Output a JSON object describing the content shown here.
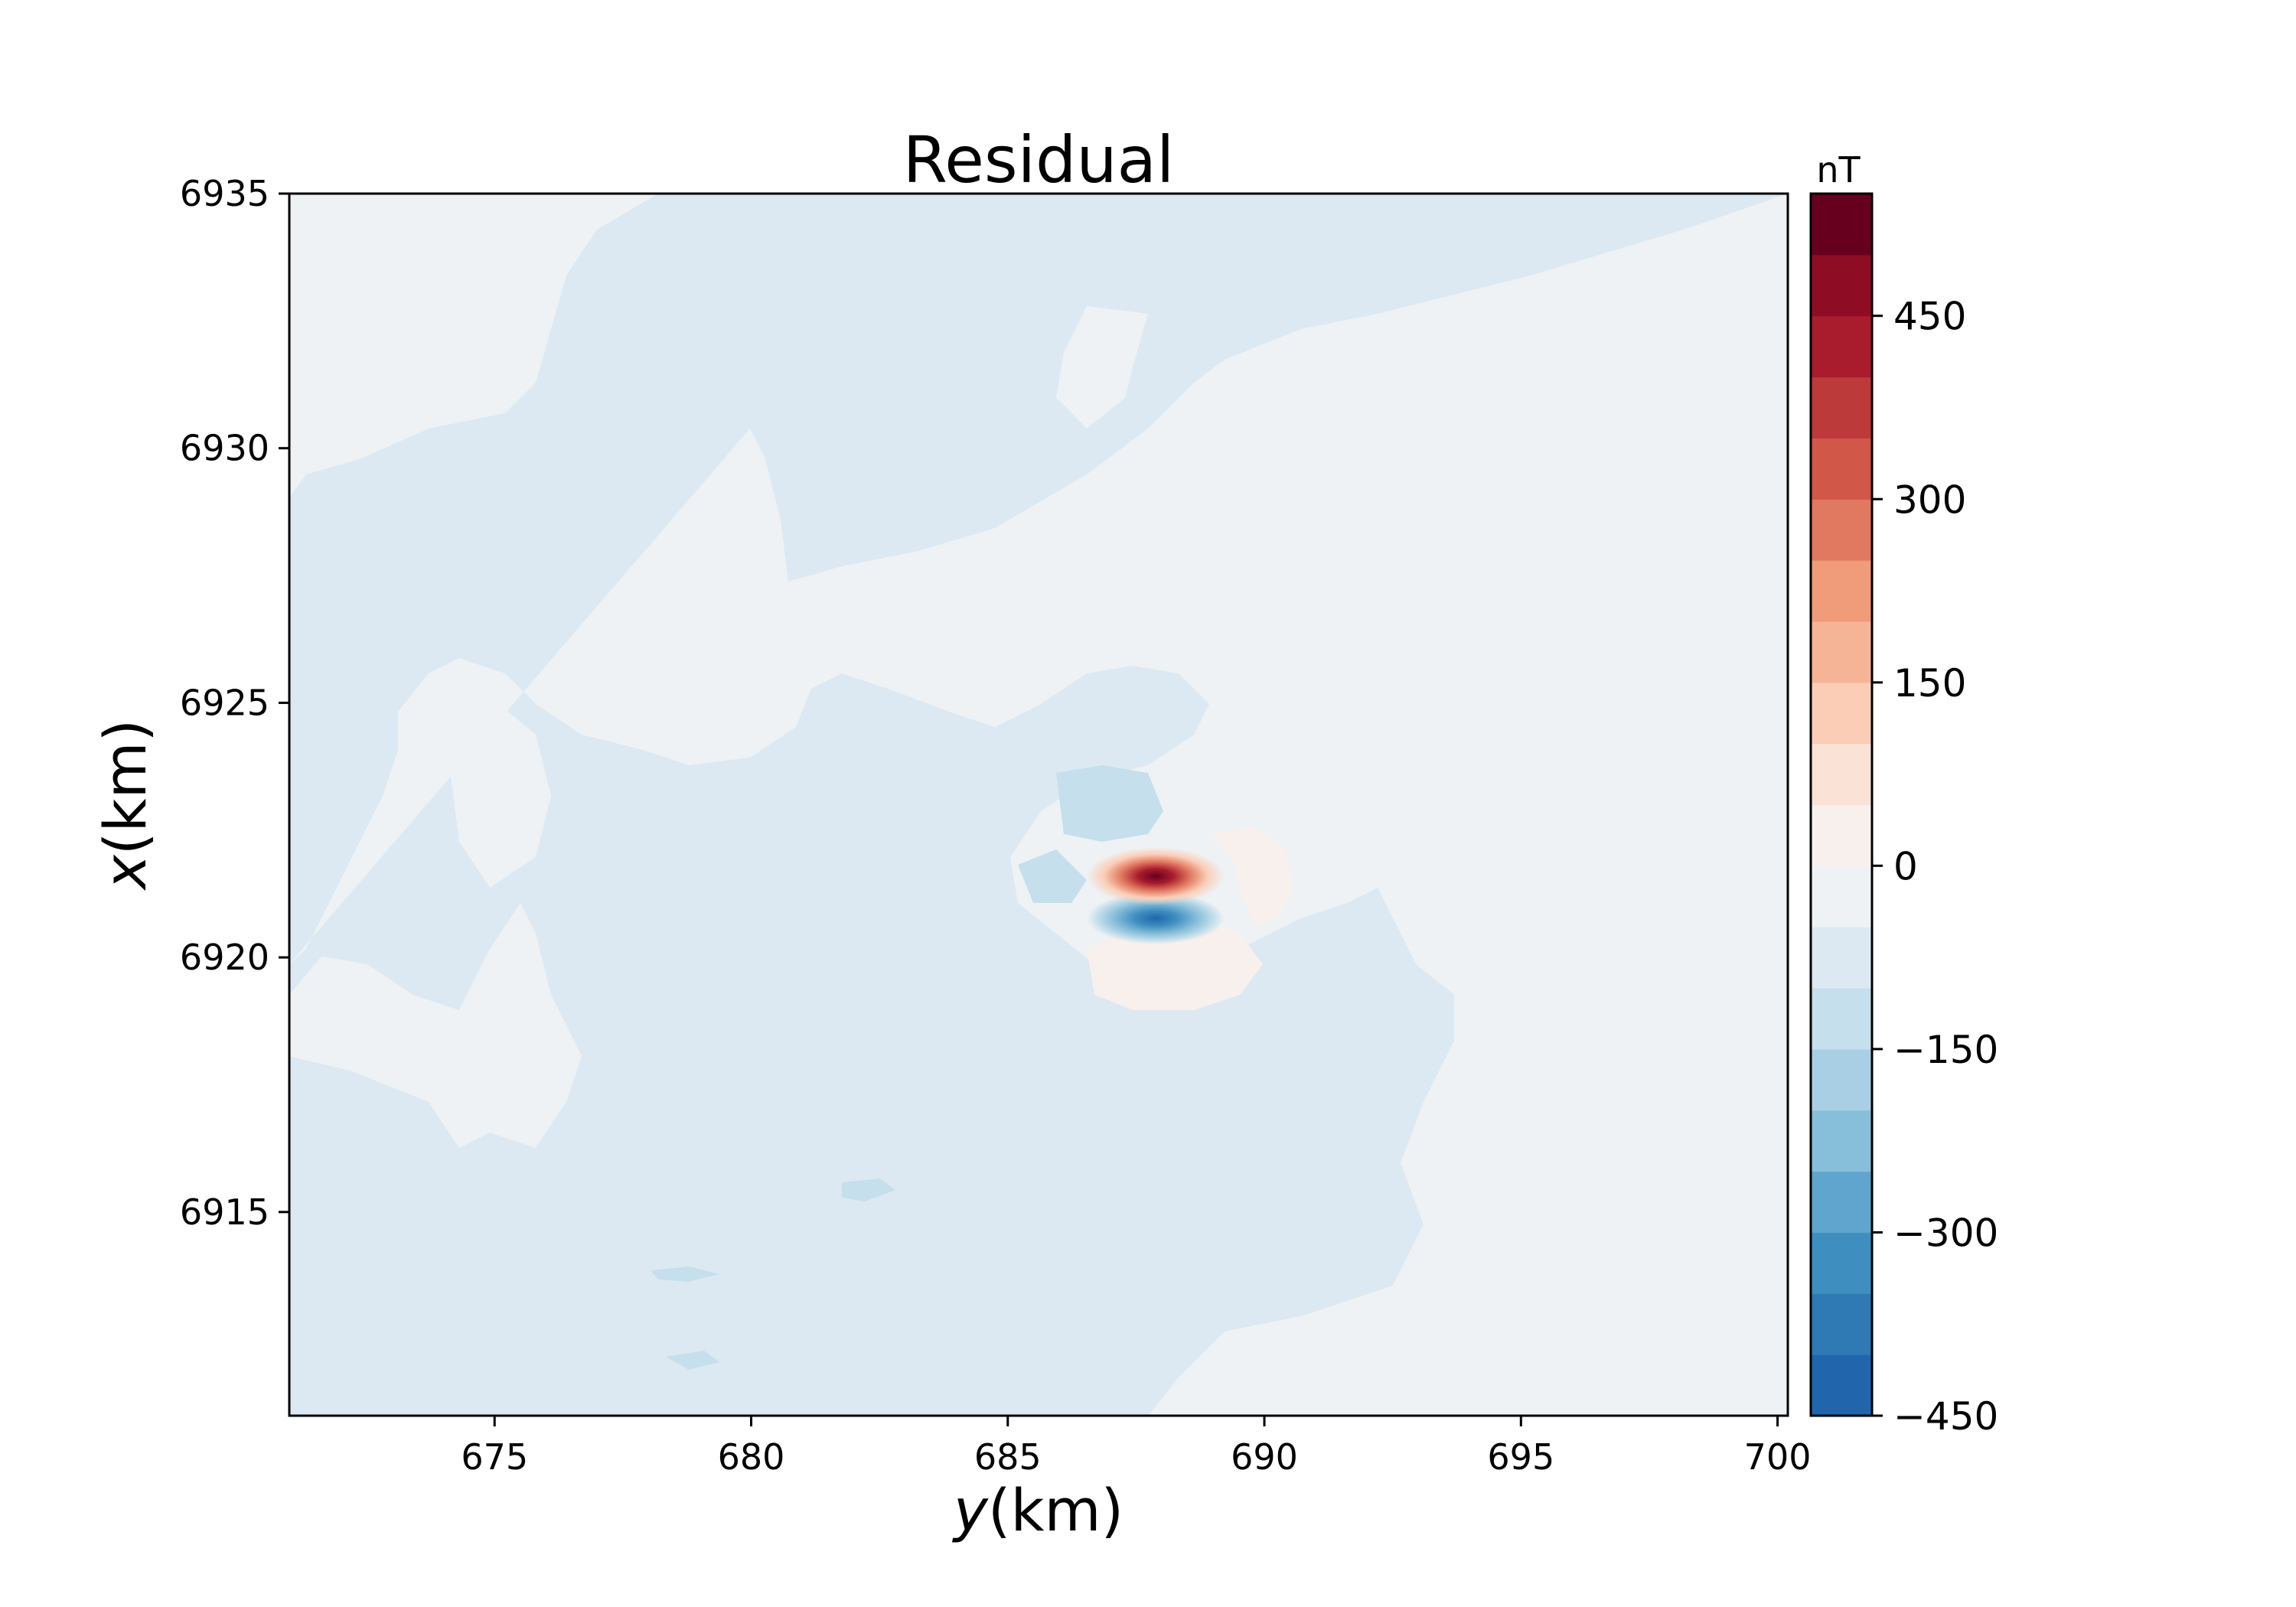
{
  "chart_data": {
    "type": "heatmap",
    "title": "Residual",
    "xlabel_italic": "y",
    "xlabel_rest": "(km)",
    "ylabel_italic": "x",
    "ylabel_rest": "(km)",
    "xlim": [
      671.0,
      700.2
    ],
    "ylim": [
      6911.0,
      6935.0
    ],
    "xticks": [
      675,
      680,
      685,
      690,
      695,
      700
    ],
    "yticks": [
      6915,
      6920,
      6925,
      6930,
      6935
    ],
    "colorbar": {
      "unit": "nT",
      "range": [
        -450,
        550
      ],
      "level_step": 50,
      "ticks": [
        -450,
        -300,
        -150,
        0,
        150,
        300,
        450
      ],
      "tick_labels": [
        "−450",
        "−300",
        "−150",
        "0",
        "150",
        "300",
        "450"
      ],
      "colormap": "RdBu_r",
      "colors": [
        "#2166ac",
        "#2f79b5",
        "#3f8ec0",
        "#5fa5cd",
        "#87beda",
        "#a9cfe5",
        "#c5dfec",
        "#dce9f2",
        "#eef2f5",
        "#f7f0ed",
        "#fbe2d6",
        "#fbcdb6",
        "#f6b497",
        "#f09b7a",
        "#e17860",
        "#d15749",
        "#bd3a3a",
        "#a81c2d",
        "#8e0d24",
        "#67001f"
      ]
    },
    "grid": false,
    "background_level": -25,
    "field": {
      "description_units": "nT",
      "features": [
        {
          "kind": "positive-peak",
          "x": 687.8,
          "y": 6921.7,
          "value": 550
        },
        {
          "kind": "negative-peak",
          "x": 687.9,
          "y": 6920.8,
          "value": -450
        },
        {
          "kind": "weak-positive-halo",
          "x": 688.2,
          "y": 6919.9,
          "value": 20
        }
      ]
    }
  }
}
